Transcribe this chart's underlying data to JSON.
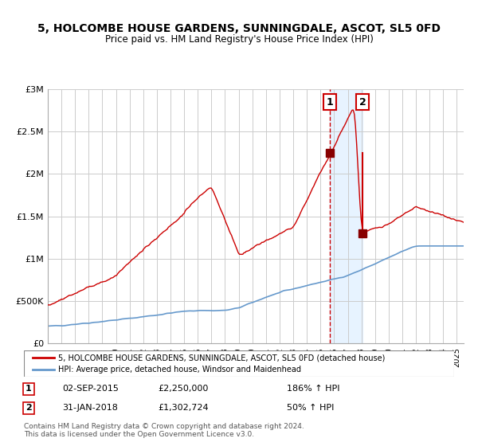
{
  "title": "5, HOLCOMBE HOUSE GARDENS, SUNNINGDALE, ASCOT, SL5 0FD",
  "subtitle": "Price paid vs. HM Land Registry's House Price Index (HPI)",
  "legend_line1": "5, HOLCOMBE HOUSE GARDENS, SUNNINGDALE, ASCOT, SL5 0FD (detached house)",
  "legend_line2": "HPI: Average price, detached house, Windsor and Maidenhead",
  "annotation1_label": "1",
  "annotation1_date": "02-SEP-2015",
  "annotation1_price": "£2,250,000",
  "annotation1_pct": "186% ↑ HPI",
  "annotation2_label": "2",
  "annotation2_date": "31-JAN-2018",
  "annotation2_price": "£1,302,724",
  "annotation2_pct": "50% ↑ HPI",
  "footer": "Contains HM Land Registry data © Crown copyright and database right 2024.\nThis data is licensed under the Open Government Licence v3.0.",
  "red_color": "#cc0000",
  "blue_color": "#6699cc",
  "background_color": "#ffffff",
  "grid_color": "#cccccc",
  "sale1_x": 2015.67,
  "sale1_y": 2250000,
  "sale2_x": 2018.08,
  "sale2_y": 1302724,
  "shade_x1": 2015.67,
  "shade_x2": 2018.08,
  "ylim": [
    0,
    3000000
  ],
  "xlim": [
    1995,
    2025.5
  ]
}
